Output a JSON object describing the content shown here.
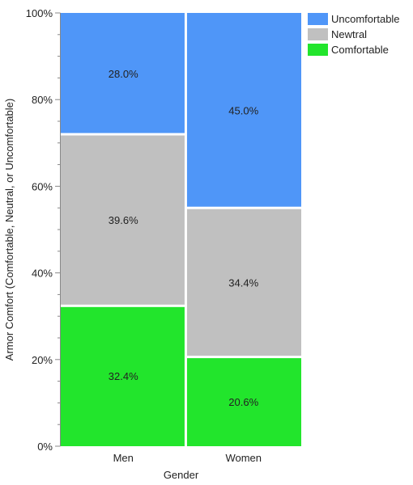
{
  "chart_data": {
    "type": "bar",
    "stacked": true,
    "normalized": true,
    "title": "",
    "xlabel": "Gender",
    "ylabel": "Armor Comfort (Comfortable, Neutral, or Uncomfortable)",
    "categories": [
      "Men",
      "Women"
    ],
    "category_widths": [
      0.52,
      0.48
    ],
    "series": [
      {
        "name": "Comfortable",
        "color": "#22e52c",
        "values": [
          32.4,
          20.6
        ],
        "labels": [
          "32.4%",
          "20.6%"
        ]
      },
      {
        "name": "Newtral",
        "color": "#c0c0c0",
        "values": [
          39.6,
          34.4
        ],
        "labels": [
          "39.6%",
          "34.4%"
        ]
      },
      {
        "name": "Uncomfortable",
        "color": "#4f96f8",
        "values": [
          28.0,
          45.0
        ],
        "labels": [
          "28.0%",
          "45.0%"
        ]
      }
    ],
    "ylim": [
      0,
      100
    ],
    "yticks": [
      0,
      20,
      40,
      60,
      80,
      100
    ],
    "ytick_labels": [
      "0%",
      "20%",
      "40%",
      "60%",
      "80%",
      "100%"
    ],
    "legend": {
      "placement": "top-right",
      "entries": [
        {
          "label": "Uncomfortable",
          "color": "#4f96f8"
        },
        {
          "label": "Newtral",
          "color": "#c0c0c0"
        },
        {
          "label": "Comfortable",
          "color": "#22e52c"
        }
      ]
    },
    "grid": false
  }
}
